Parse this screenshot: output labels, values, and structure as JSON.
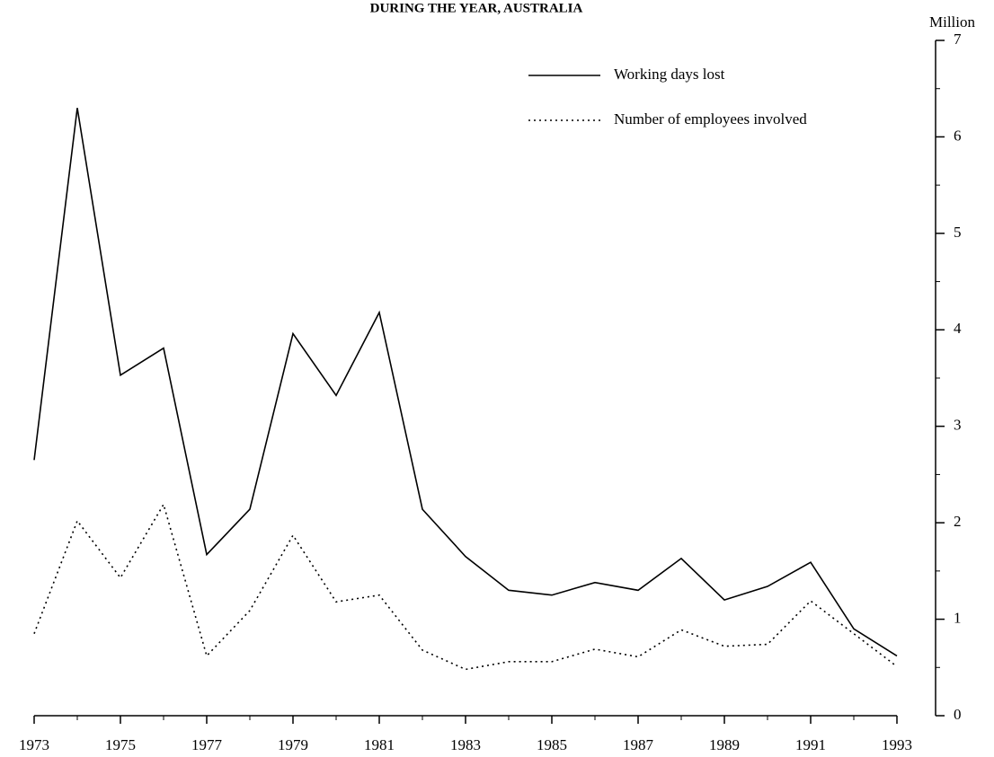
{
  "chart_data": {
    "type": "line",
    "title": "DURING THE YEAR, AUSTRALIA",
    "y_axis_label": "Million",
    "x": [
      1973,
      1974,
      1975,
      1976,
      1977,
      1978,
      1979,
      1980,
      1981,
      1982,
      1983,
      1984,
      1985,
      1986,
      1987,
      1988,
      1989,
      1990,
      1991,
      1992,
      1993
    ],
    "xlim": [
      1973,
      1993
    ],
    "xticks": [
      1973,
      1975,
      1977,
      1979,
      1981,
      1983,
      1985,
      1987,
      1989,
      1991,
      1993
    ],
    "ylim": [
      0,
      7
    ],
    "yticks": [
      0,
      1,
      2,
      3,
      4,
      5,
      6,
      7
    ],
    "y_minor_ticks": [
      0.5,
      1.5,
      2.5,
      3.5,
      4.5,
      5.5,
      6.5
    ],
    "y_axis_side": "right",
    "grid": false,
    "series": [
      {
        "name": "Working days lost",
        "color": "#000000",
        "style": "solid",
        "values": [
          2.65,
          6.3,
          3.53,
          3.81,
          1.67,
          2.14,
          3.96,
          3.32,
          4.18,
          2.14,
          1.65,
          1.3,
          1.25,
          1.38,
          1.3,
          1.63,
          1.2,
          1.34,
          1.59,
          0.9,
          0.62
        ]
      },
      {
        "name": "Number of employees involved",
        "color": "#000000",
        "style": "dotted",
        "values": [
          0.85,
          2.02,
          1.43,
          2.19,
          0.62,
          1.09,
          1.87,
          1.18,
          1.25,
          0.68,
          0.48,
          0.56,
          0.56,
          0.69,
          0.61,
          0.89,
          0.72,
          0.74,
          1.19,
          0.85,
          0.51
        ]
      }
    ]
  }
}
